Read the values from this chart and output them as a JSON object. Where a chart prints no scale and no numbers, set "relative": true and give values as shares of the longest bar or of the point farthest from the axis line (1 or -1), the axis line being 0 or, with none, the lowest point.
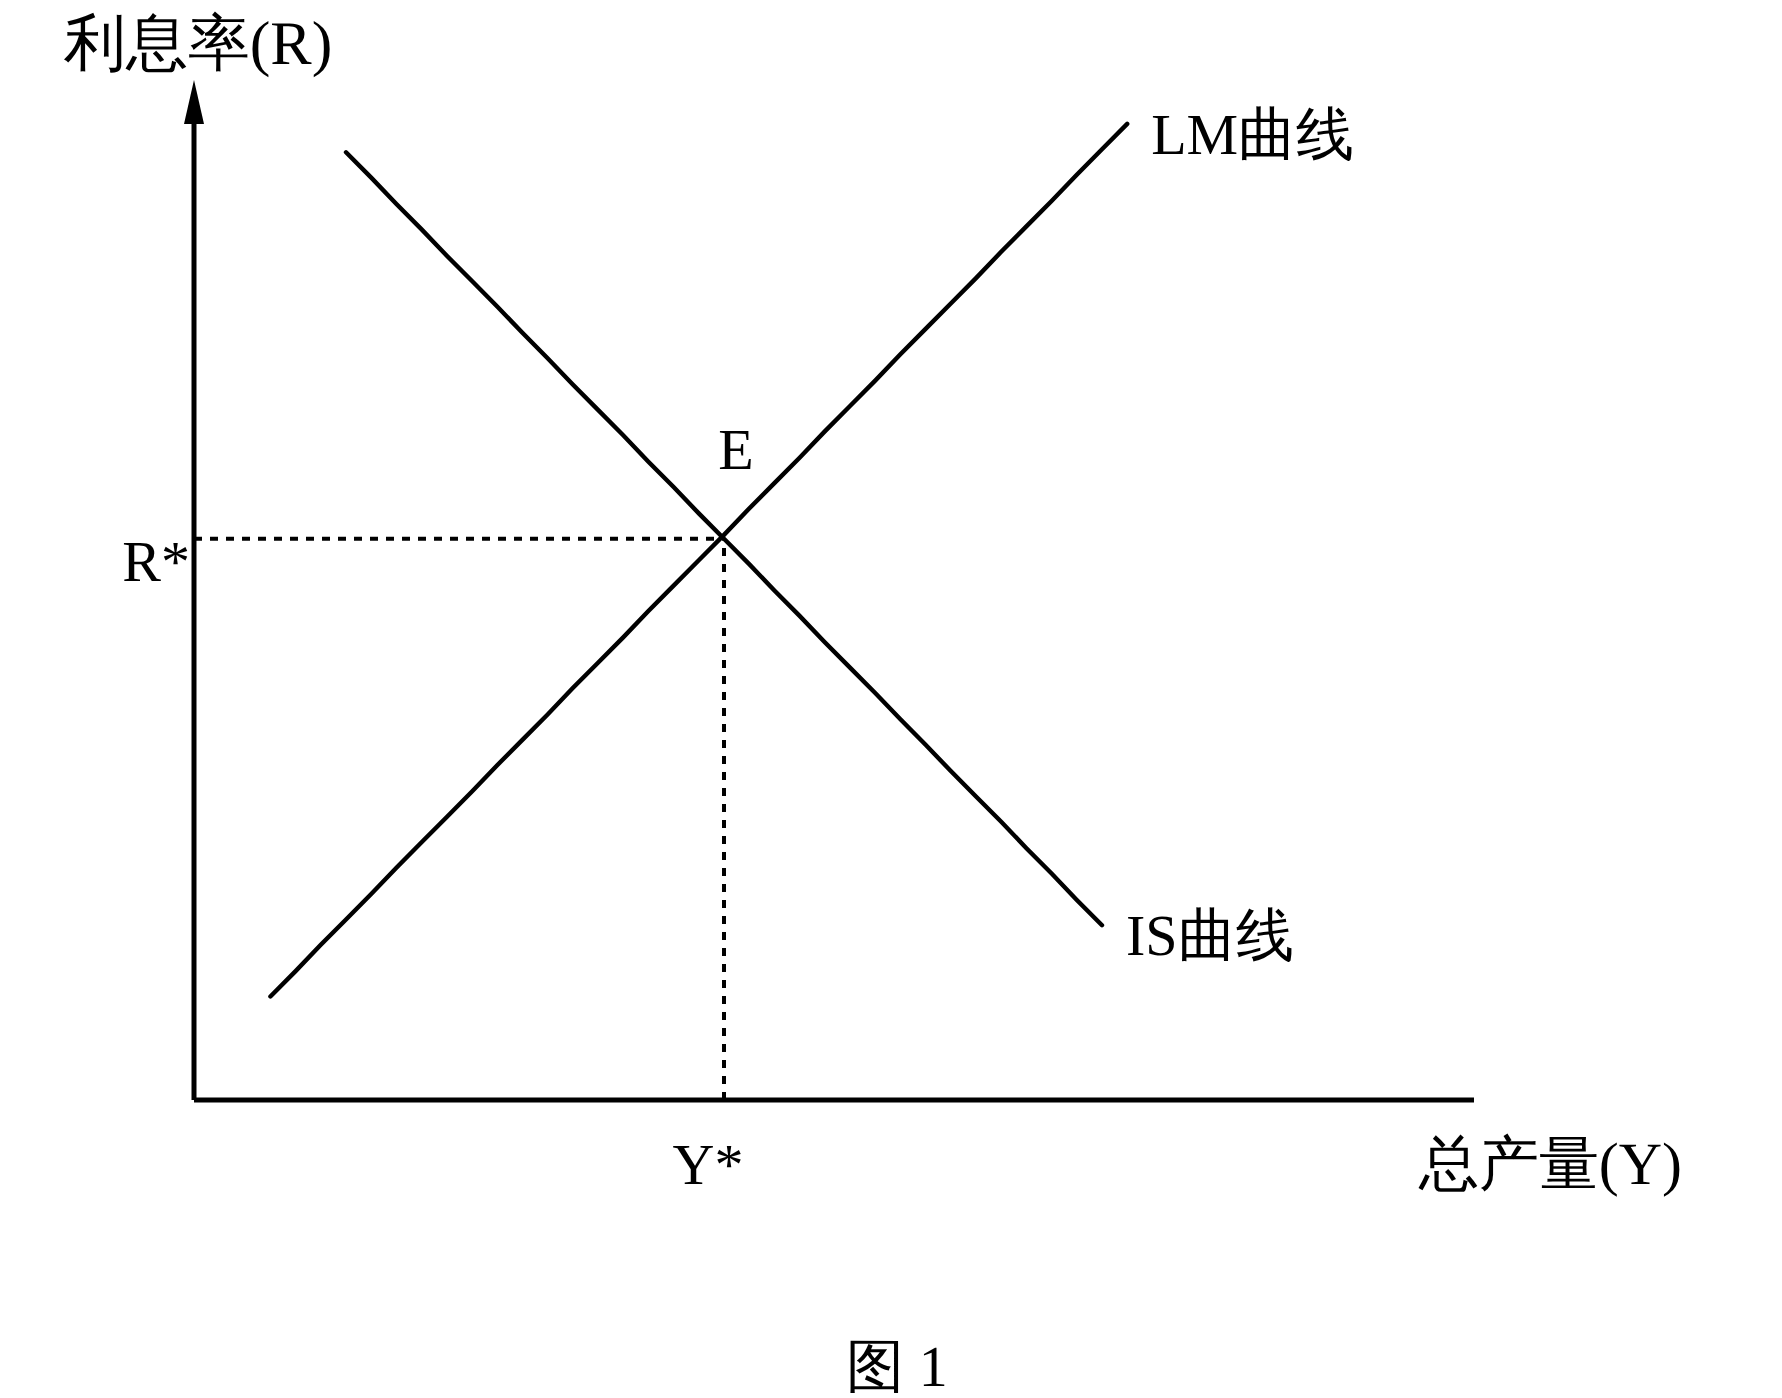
{
  "chart_data": {
    "type": "line",
    "relative": true,
    "xlabel": "总产量(Y)",
    "ylabel": "利息率(R)",
    "categories": [
      null,
      null,
      null,
      null,
      null,
      null,
      null,
      null,
      null,
      null,
      null,
      null,
      null,
      null,
      null,
      null,
      null,
      null,
      null,
      null,
      null,
      null,
      null,
      null,
      null,
      null,
      null,
      null,
      null,
      null,
      null,
      null,
      null,
      null,
      null
    ],
    "series": [
      {
        "name": "LM曲线",
        "color": "#000000",
        "values": [
          0.106,
          0.132,
          0.159,
          0.185,
          0.211,
          0.238,
          0.264,
          0.29,
          0.316,
          0.343,
          0.369,
          0.395,
          0.422,
          0.448,
          0.474,
          0.501,
          0.527,
          0.553,
          0.579,
          0.606,
          0.632,
          0.658,
          0.685,
          0.711,
          0.737,
          0.764,
          0.79,
          0.816,
          0.842,
          0.869,
          0.895,
          0.921,
          0.948,
          0.974,
          1
        ]
      },
      {
        "name": "IS曲线",
        "color": "#000000",
        "values": [
          null,
          null,
          null,
          0.971,
          0.945,
          0.918,
          0.892,
          0.865,
          0.839,
          0.813,
          0.786,
          0.76,
          0.733,
          0.707,
          0.681,
          0.654,
          0.628,
          0.601,
          0.575,
          0.549,
          0.522,
          0.496,
          0.469,
          0.443,
          0.417,
          0.39,
          0.364,
          0.337,
          0.311,
          0.285,
          0.258,
          0.232,
          0.205,
          0.179,
          null
        ]
      }
    ],
    "ref_lines": [
      {
        "axis": "y",
        "value": 0.575,
        "label": "R*",
        "line_style": "dotted",
        "color": "#000000"
      }
    ],
    "annotations": [
      {
        "text": "E",
        "y": 0.575
      },
      "Y*",
      "图 1"
    ]
  }
}
